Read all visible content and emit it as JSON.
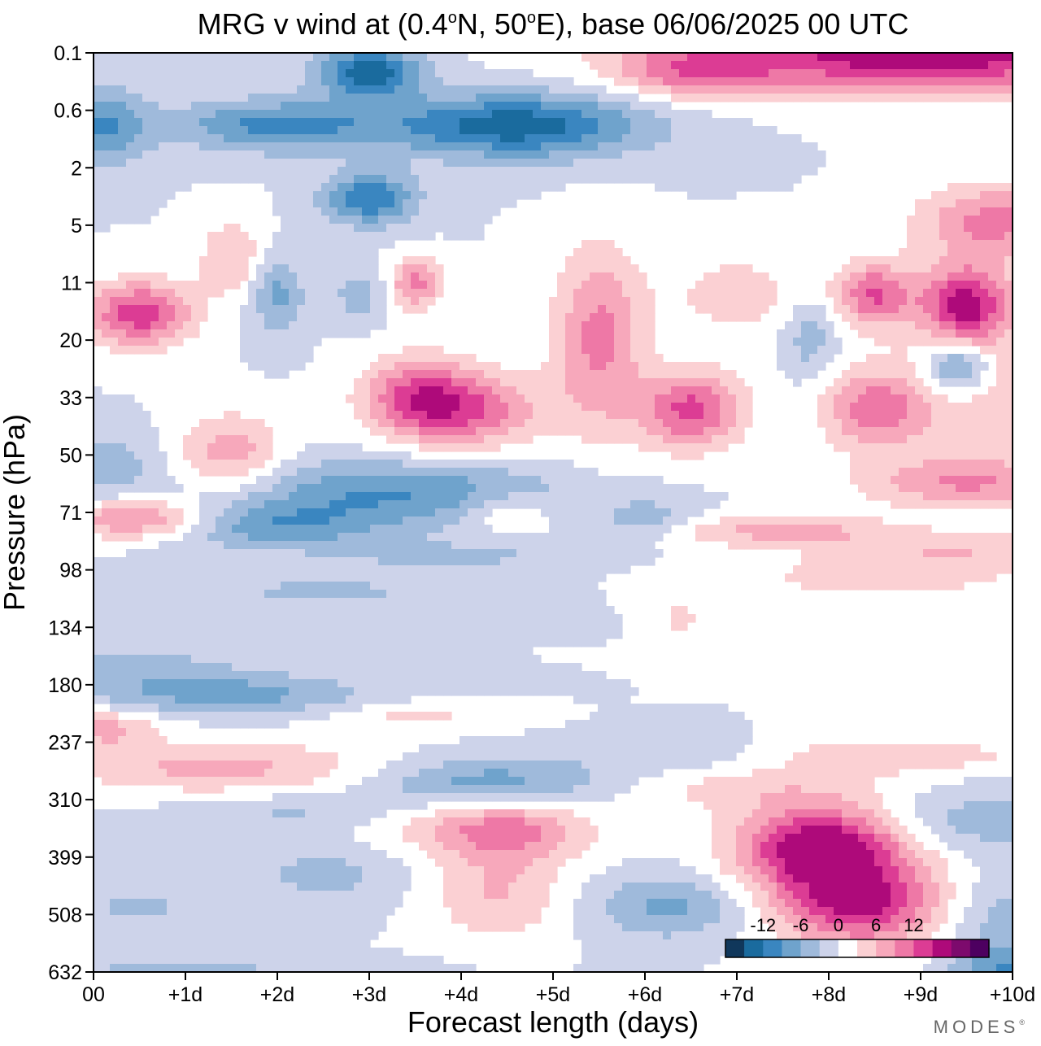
{
  "chart_data": {
    "type": "heatmap",
    "title": {
      "prefix": "MRG v wind at (0.4",
      "deg1": "o",
      "mid": "N, 50",
      "deg2": "o",
      "suffix": "E),  base 06/06/2025  00 UTC"
    },
    "xlabel": "Forecast length (days)",
    "ylabel": "Pressure (hPa)",
    "x_tick_labels": [
      "00",
      "+1d",
      "+2d",
      "+3d",
      "+4d",
      "+5d",
      "+6d",
      "+7d",
      "+8d",
      "+9d",
      "+10d"
    ],
    "y_tick_labels": [
      "0.1",
      "0.6",
      "2",
      "5",
      "11",
      "20",
      "33",
      "50",
      "71",
      "98",
      "134",
      "180",
      "237",
      "310",
      "399",
      "508",
      "632"
    ],
    "xlim": [
      0,
      10
    ],
    "ylim": [
      0.1,
      632
    ],
    "levels": [
      -15,
      -12,
      -9,
      -6,
      -3,
      0,
      3,
      6,
      9,
      12,
      15
    ],
    "legend_labels": [
      "-12",
      "-6",
      "0",
      "6",
      "12"
    ],
    "colors": [
      "#10375b",
      "#1a6b9e",
      "#3a86c0",
      "#6fa3cc",
      "#9fbadb",
      "#cdd3ea",
      "#ffffff",
      "#fbd0d3",
      "#f7a8bb",
      "#ee78a6",
      "#dc3c94",
      "#ae0a7a",
      "#7d0a6d",
      "#4d0060"
    ],
    "features": [
      {
        "x": 4.6,
        "p": 0.2,
        "sx": 1.0,
        "sy": 0.25,
        "a": -14
      },
      {
        "x": 3.0,
        "p": 0.12,
        "sx": 0.4,
        "sy": 0.2,
        "a": -14
      },
      {
        "x": 3.0,
        "p": 0.4,
        "sx": 0.35,
        "sy": 0.2,
        "a": -12
      },
      {
        "x": 2.0,
        "p": 0.2,
        "sx": 0.8,
        "sy": 0.2,
        "a": -10
      },
      {
        "x": 0.1,
        "p": 0.2,
        "sx": 0.35,
        "sy": 0.3,
        "a": -9
      },
      {
        "x": 9.0,
        "p": 0.1,
        "sx": 1.8,
        "sy": 0.3,
        "a": 18
      },
      {
        "x": 6.5,
        "p": 0.12,
        "sx": 0.6,
        "sy": 0.2,
        "a": 8
      },
      {
        "x": 9.8,
        "p": 0.5,
        "sx": 0.6,
        "sy": 0.3,
        "a": 10
      },
      {
        "x": 9.5,
        "p": 1.1,
        "sx": 0.35,
        "sy": 0.3,
        "a": 16
      },
      {
        "x": 8.5,
        "p": 1.0,
        "sx": 0.3,
        "sy": 0.25,
        "a": 12
      },
      {
        "x": 9.4,
        "p": 2.0,
        "sx": 0.25,
        "sy": 0.2,
        "a": -11
      },
      {
        "x": 0.5,
        "p": 1.2,
        "sx": 0.4,
        "sy": 0.25,
        "a": 14
      },
      {
        "x": 1.5,
        "p": 0.7,
        "sx": 0.25,
        "sy": 0.3,
        "a": 6
      },
      {
        "x": 2.0,
        "p": 1.0,
        "sx": 0.2,
        "sy": 0.3,
        "a": -7
      },
      {
        "x": 2.9,
        "p": 1.0,
        "sx": 0.2,
        "sy": 0.2,
        "a": -5
      },
      {
        "x": 3.5,
        "p": 0.9,
        "sx": 0.2,
        "sy": 0.2,
        "a": 10
      },
      {
        "x": 4.0,
        "p": 3.0,
        "sx": 0.6,
        "sy": 0.3,
        "a": 12
      },
      {
        "x": 3.5,
        "p": 2.5,
        "sx": 0.4,
        "sy": 0.3,
        "a": 8
      },
      {
        "x": 5.5,
        "p": 1.5,
        "sx": 0.35,
        "sy": 0.7,
        "a": 10
      },
      {
        "x": 6.5,
        "p": 3.0,
        "sx": 0.4,
        "sy": 0.3,
        "a": 13
      },
      {
        "x": 7.0,
        "p": 1.0,
        "sx": 0.5,
        "sy": 0.3,
        "a": 5
      },
      {
        "x": 7.8,
        "p": 1.5,
        "sx": 0.2,
        "sy": 0.3,
        "a": -5
      },
      {
        "x": 8.5,
        "p": 3.0,
        "sx": 0.4,
        "sy": 0.3,
        "a": 10
      },
      {
        "x": 9.5,
        "p": 6.0,
        "sx": 0.8,
        "sy": 0.2,
        "a": 9
      },
      {
        "x": 9.7,
        "p": 2.5,
        "sx": 0.8,
        "sy": 0.5,
        "a": 5
      },
      {
        "x": 1.5,
        "p": 4.5,
        "sx": 0.4,
        "sy": 0.3,
        "a": 8
      },
      {
        "x": 0.1,
        "p": 5.0,
        "sx": 0.4,
        "sy": 0.25,
        "a": -5
      },
      {
        "x": 3.3,
        "p": 6.5,
        "sx": 1.2,
        "sy": 0.25,
        "a": -9
      },
      {
        "x": 1.9,
        "p": 9.0,
        "sx": 0.9,
        "sy": 0.18,
        "a": -8
      },
      {
        "x": 0.5,
        "p": 8.5,
        "sx": 0.6,
        "sy": 0.15,
        "a": 11
      },
      {
        "x": 4.5,
        "p": 8.0,
        "sx": 0.3,
        "sy": 0.15,
        "a": 5
      },
      {
        "x": 6.0,
        "p": 8.5,
        "sx": 0.35,
        "sy": 0.15,
        "a": -5
      },
      {
        "x": 7.5,
        "p": 9.5,
        "sx": 0.9,
        "sy": 0.12,
        "a": 7
      },
      {
        "x": 9.5,
        "p": 11.5,
        "sx": 1.0,
        "sy": 0.15,
        "a": 5
      },
      {
        "x": 8.5,
        "p": 15.0,
        "sx": 1.2,
        "sy": 0.2,
        "a": 4
      },
      {
        "x": 2.5,
        "p": 17.0,
        "sx": 1.2,
        "sy": 0.18,
        "a": -3.5
      },
      {
        "x": 4.0,
        "p": 12.0,
        "sx": 1.0,
        "sy": 0.12,
        "a": -3.5
      },
      {
        "x": 6.4,
        "p": 22.0,
        "sx": 0.15,
        "sy": 0.15,
        "a": 4
      },
      {
        "x": 1.5,
        "p": 45.0,
        "sx": 1.1,
        "sy": 0.15,
        "a": -7
      },
      {
        "x": 0.5,
        "p": 35.0,
        "sx": 0.9,
        "sy": 0.18,
        "a": -4
      },
      {
        "x": 3.5,
        "p": 55.0,
        "sx": 0.6,
        "sy": 0.12,
        "a": 4
      },
      {
        "x": 1.4,
        "p": 90.0,
        "sx": 1.2,
        "sy": 0.2,
        "a": 7
      },
      {
        "x": 0.1,
        "p": 62.0,
        "sx": 0.4,
        "sy": 0.15,
        "a": 7
      },
      {
        "x": 4.3,
        "p": 105.0,
        "sx": 0.9,
        "sy": 0.2,
        "a": -8
      },
      {
        "x": 2.3,
        "p": 140.0,
        "sx": 0.9,
        "sy": 0.15,
        "a": -4
      },
      {
        "x": 2.5,
        "p": 250.0,
        "sx": 0.6,
        "sy": 0.25,
        "a": -4
      },
      {
        "x": 0.5,
        "p": 340.0,
        "sx": 0.4,
        "sy": 0.15,
        "a": -4
      },
      {
        "x": 4.5,
        "p": 170.0,
        "sx": 0.6,
        "sy": 0.25,
        "a": 8
      },
      {
        "x": 3.9,
        "p": 150.0,
        "sx": 1.0,
        "sy": 0.2,
        "a": 4
      },
      {
        "x": 4.4,
        "p": 310.0,
        "sx": 0.5,
        "sy": 0.35,
        "a": 6
      },
      {
        "x": 6.3,
        "p": 340.0,
        "sx": 0.6,
        "sy": 0.25,
        "a": -7
      },
      {
        "x": 6.5,
        "p": 80.0,
        "sx": 0.8,
        "sy": 0.15,
        "a": -3.5
      },
      {
        "x": 7.1,
        "p": 110.0,
        "sx": 1.0,
        "sy": 0.18,
        "a": 4
      },
      {
        "x": 8.6,
        "p": 80.0,
        "sx": 1.2,
        "sy": 0.15,
        "a": 5
      },
      {
        "x": 7.9,
        "p": 190.0,
        "sx": 0.6,
        "sy": 0.3,
        "a": 14
      },
      {
        "x": 8.4,
        "p": 340.0,
        "sx": 0.6,
        "sy": 0.3,
        "a": 11
      },
      {
        "x": 8.1,
        "p": 250.0,
        "sx": 0.8,
        "sy": 0.5,
        "a": 7
      },
      {
        "x": 9.6,
        "p": 150.0,
        "sx": 0.8,
        "sy": 0.25,
        "a": -5
      },
      {
        "x": 9.9,
        "p": 400.0,
        "sx": 0.5,
        "sy": 0.4,
        "a": -5
      },
      {
        "x": 1.0,
        "p": 620.0,
        "sx": 1.6,
        "sy": 0.1,
        "a": -3.5
      },
      {
        "x": 9.9,
        "p": 620.0,
        "sx": 0.4,
        "sy": 0.15,
        "a": -7
      }
    ]
  },
  "brand": {
    "text": "MODES",
    "mark": "®"
  }
}
